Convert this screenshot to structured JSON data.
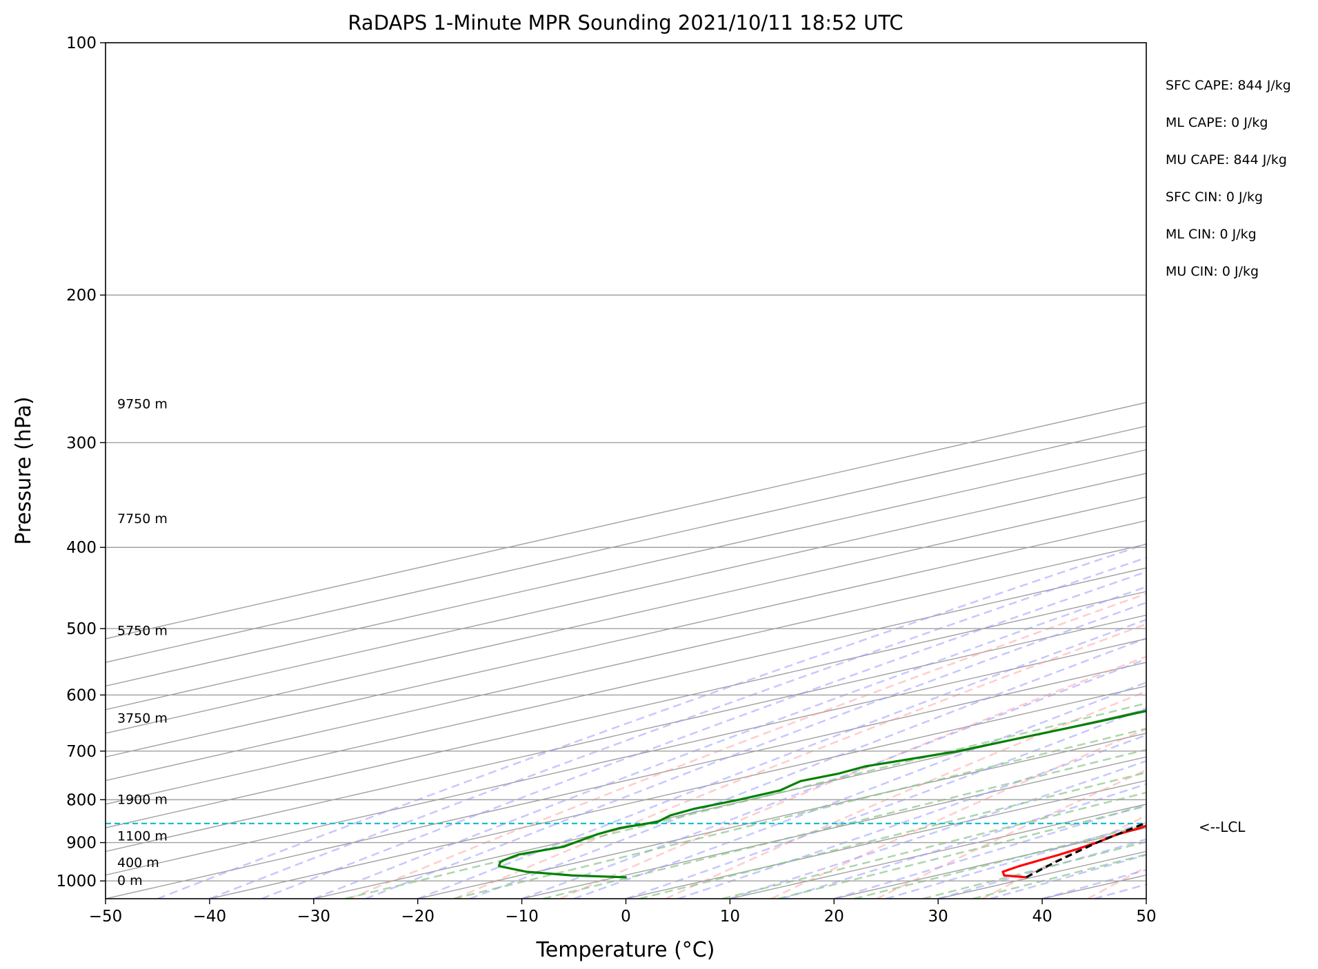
{
  "chart_data": {
    "type": "line",
    "title": "RaDAPS 1-Minute MPR Sounding 2021/10/11 18:52 UTC",
    "xlabel": "Temperature (°C)",
    "ylabel": "Pressure (hPa)",
    "xlim": [
      -50,
      50
    ],
    "ylim": [
      1050,
      100
    ],
    "y_scale": "log",
    "skew": true,
    "grid": true,
    "x_ticks": [
      -50,
      -40,
      -30,
      -20,
      -10,
      0,
      10,
      20,
      30,
      40,
      50
    ],
    "x_tick_labels": [
      "−50",
      "−40",
      "−30",
      "−20",
      "−10",
      "0",
      "10",
      "20",
      "30",
      "40",
      "50"
    ],
    "y_ticks": [
      100,
      200,
      300,
      400,
      500,
      600,
      700,
      800,
      900,
      1000
    ],
    "y_tick_labels": [
      "100",
      "200",
      "300",
      "400",
      "500",
      "600",
      "700",
      "800",
      "900",
      "1000"
    ],
    "colors": {
      "temperature": "#ff0000",
      "dewpoint": "#008000",
      "parcel": "#000000",
      "lcl": "#17becf",
      "dry_adiabats": "#ff9999",
      "moist_adiabats": "#9999ff",
      "mixing_ratio": "#88c488",
      "isotherms": "#a0a0a0"
    },
    "series": [
      {
        "key": "temperature",
        "pressure": [
          990,
          985,
          975,
          960,
          945,
          930,
          915,
          900,
          880,
          865,
          850,
          820,
          790,
          760,
          730,
          700,
          670,
          650,
          625,
          600,
          570,
          545,
          530,
          500,
          480,
          460,
          440,
          420,
          400,
          385,
          370,
          350,
          330,
          310,
          295,
          278
        ],
        "temp": [
          29.4,
          26.5,
          24.8,
          24.0,
          23.5,
          23.0,
          22.3,
          21.5,
          20.0,
          19.5,
          18.5,
          17.3,
          16.5,
          15.8,
          15.8,
          15.6,
          14.0,
          12.5,
          11.5,
          10.5,
          9.0,
          8.0,
          7.0,
          5.5,
          4.0,
          3.0,
          1.5,
          0.5,
          -0.5,
          -2.0,
          -3.0,
          -5.0,
          -7.0,
          -8.5,
          -10.5,
          -13.0
        ]
      },
      {
        "key": "dewpoint",
        "pressure": [
          990,
          985,
          975,
          960,
          950,
          945,
          930,
          910,
          895,
          880,
          865,
          850,
          835,
          820,
          800,
          780,
          760,
          745,
          730,
          700,
          670,
          645,
          630,
          612,
          592,
          575,
          555,
          540,
          525,
          510,
          500,
          490,
          480,
          465,
          450,
          430,
          415,
          400,
          385,
          370,
          355,
          350,
          340,
          330,
          318,
          310,
          303,
          295,
          290,
          285
        ],
        "temp": [
          -9.0,
          -15.0,
          -21.0,
          -26.0,
          -27.5,
          -28.0,
          -29.0,
          -28.0,
          -29.0,
          -30.0,
          -30.5,
          -29.5,
          -31.0,
          -31.5,
          -31.0,
          -31.0,
          -33.0,
          -32.5,
          -33.0,
          -30.5,
          -30.0,
          -29.5,
          -29.5,
          -29.0,
          -29.5,
          -31.0,
          -34.0,
          -37.0,
          -38.0,
          -41.0,
          -43.0,
          -47.0,
          -48.0,
          -47.5,
          -49.5,
          -51.0,
          -51.5,
          -48.5,
          -50.5,
          -51.0,
          -54.0,
          -53.0,
          -54.5,
          -57.0,
          -63.0,
          -64.0,
          -64.0,
          -65.5,
          -74.0,
          -88.0
        ]
      },
      {
        "key": "parcel",
        "pressure": [
          990,
          950,
          900,
          854,
          800,
          750,
          700,
          650,
          600,
          550,
          500,
          450,
          400,
          350,
          300,
          278
        ],
        "temp": [
          29.4,
          25.8,
          21.5,
          18.0,
          17.3,
          16.5,
          15.6,
          14.6,
          13.3,
          11.6,
          9.6,
          6.9,
          3.4,
          -1.4,
          -7.8,
          -11.2
        ]
      }
    ],
    "lcl": {
      "pressure": 854,
      "label": "<--LCL"
    },
    "height_labels": [
      {
        "pressure": 1000,
        "text": "0 m"
      },
      {
        "pressure": 952,
        "text": "400 m"
      },
      {
        "pressure": 885,
        "text": "1100 m"
      },
      {
        "pressure": 800,
        "text": "1900 m"
      },
      {
        "pressure": 640,
        "text": "3750 m"
      },
      {
        "pressure": 503,
        "text": "5750 m"
      },
      {
        "pressure": 370,
        "text": "7750 m"
      },
      {
        "pressure": 270,
        "text": "9750 m"
      }
    ],
    "annotations": [
      "SFC CAPE: 844 J/kg",
      "ML CAPE: 0 J/kg",
      "MU CAPE: 844 J/kg",
      "SFC CIN: 0 J/kg",
      "ML CIN: 0 J/kg",
      "MU CIN: 0 J/kg"
    ]
  }
}
